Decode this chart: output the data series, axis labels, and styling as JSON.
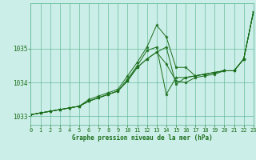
{
  "xlabel": "Graphe pression niveau de la mer (hPa)",
  "xlim": [
    0,
    23
  ],
  "ylim": [
    1032.75,
    1036.35
  ],
  "yticks": [
    1033,
    1034,
    1035
  ],
  "xticks": [
    0,
    1,
    2,
    3,
    4,
    5,
    6,
    7,
    8,
    9,
    10,
    11,
    12,
    13,
    14,
    15,
    16,
    17,
    18,
    19,
    20,
    21,
    22,
    23
  ],
  "bg_color": "#cceee8",
  "grid_color": "#66bb99",
  "line_color": "#1a6e1a",
  "series": [
    [
      1033.05,
      1033.1,
      1033.15,
      1033.2,
      1033.25,
      1033.3,
      1033.45,
      1033.55,
      1033.65,
      1033.75,
      1034.05,
      1034.45,
      1034.7,
      1034.9,
      1035.05,
      1033.95,
      1034.15,
      1034.2,
      1034.25,
      1034.3,
      1034.35,
      1034.35,
      1034.7,
      1036.1
    ],
    [
      1033.05,
      1033.1,
      1033.15,
      1033.2,
      1033.25,
      1033.3,
      1033.45,
      1033.55,
      1033.65,
      1033.75,
      1034.1,
      1034.5,
      1034.95,
      1035.05,
      1033.65,
      1034.15,
      1034.15,
      1034.2,
      1034.25,
      1034.3,
      1034.35,
      1034.35,
      1034.7,
      1036.1
    ],
    [
      1033.05,
      1033.1,
      1033.15,
      1033.2,
      1033.25,
      1033.3,
      1033.5,
      1033.6,
      1033.7,
      1033.8,
      1034.2,
      1034.6,
      1035.05,
      1035.7,
      1035.35,
      1034.45,
      1034.45,
      1034.2,
      1034.25,
      1034.3,
      1034.35,
      1034.35,
      1034.7,
      1036.1
    ],
    [
      1033.05,
      1033.1,
      1033.15,
      1033.2,
      1033.25,
      1033.3,
      1033.45,
      1033.55,
      1033.65,
      1033.75,
      1034.05,
      1034.45,
      1034.7,
      1034.9,
      1034.55,
      1034.05,
      1034.0,
      1034.15,
      1034.2,
      1034.25,
      1034.35,
      1034.35,
      1034.7,
      1036.1
    ]
  ]
}
